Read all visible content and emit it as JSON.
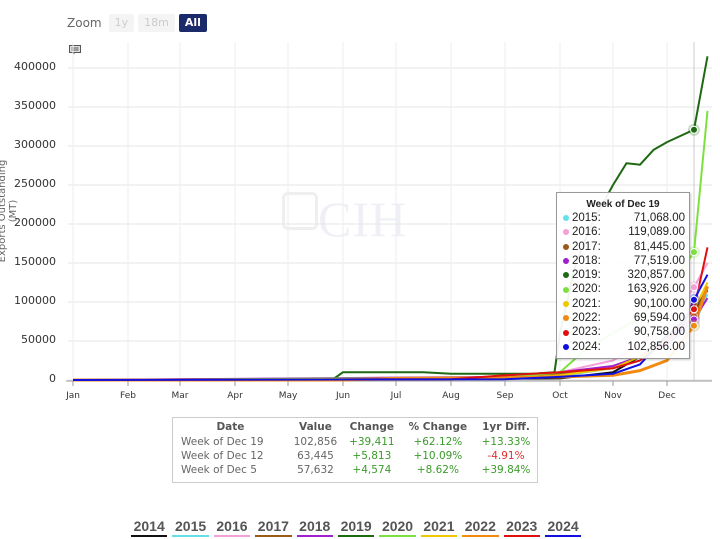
{
  "zoom": {
    "label": "Zoom",
    "buttons": [
      {
        "label": "1y",
        "active": false
      },
      {
        "label": "18m",
        "active": false
      },
      {
        "label": "All",
        "active": true
      }
    ]
  },
  "watermark": "CIH",
  "chart_data": {
    "type": "line",
    "title": "",
    "xlabel": "",
    "ylabel": "Exports Outstanding (MT)",
    "ylim": [
      0,
      400000
    ],
    "grid": true,
    "x_tick_labels": [
      "Jan",
      "Feb",
      "Mar",
      "Apr",
      "May",
      "Jun",
      "Jul",
      "Aug",
      "Sep",
      "Oct",
      "Nov",
      "Dec"
    ],
    "y_tick_labels": [
      "0",
      "50000",
      "100000",
      "150000",
      "200000",
      "250000",
      "300000",
      "350000",
      "400000"
    ],
    "legend_position": "bottom",
    "x_units": "month index (0=Jan, 11=Dec)",
    "series": [
      {
        "name": "2014",
        "color": "#111111",
        "points": [
          [
            0,
            0
          ],
          [
            9,
            2000
          ],
          [
            10,
            10000
          ],
          [
            10.5,
            30000
          ],
          [
            11,
            55000
          ],
          [
            11.5,
            90000
          ],
          [
            11.75,
            115000
          ]
        ]
      },
      {
        "name": "2015",
        "color": "#66e0e8",
        "points": [
          [
            0,
            0
          ],
          [
            8,
            2000
          ],
          [
            9,
            5000
          ],
          [
            10,
            15000
          ],
          [
            10.5,
            30000
          ],
          [
            11,
            45000
          ],
          [
            11.5,
            71068
          ],
          [
            11.75,
            110000
          ]
        ]
      },
      {
        "name": "2016",
        "color": "#f5a0d8",
        "points": [
          [
            0,
            0
          ],
          [
            8,
            3000
          ],
          [
            9,
            10000
          ],
          [
            10,
            25000
          ],
          [
            10.5,
            45000
          ],
          [
            11,
            70000
          ],
          [
            11.5,
            119089
          ],
          [
            11.75,
            150000
          ]
        ]
      },
      {
        "name": "2017",
        "color": "#9a5a1a",
        "points": [
          [
            0,
            0
          ],
          [
            8,
            3000
          ],
          [
            9,
            8000
          ],
          [
            10,
            15000
          ],
          [
            10.5,
            30000
          ],
          [
            11,
            50000
          ],
          [
            11.5,
            81445
          ],
          [
            11.75,
            120000
          ]
        ]
      },
      {
        "name": "2018",
        "color": "#a020d0",
        "points": [
          [
            0,
            0
          ],
          [
            8,
            4000
          ],
          [
            9,
            10000
          ],
          [
            10,
            18000
          ],
          [
            10.5,
            30000
          ],
          [
            11,
            45000
          ],
          [
            11.5,
            77519
          ],
          [
            11.75,
            105000
          ]
        ]
      },
      {
        "name": "2019",
        "color": "#1e6a12",
        "points": [
          [
            0,
            0
          ],
          [
            4.8,
            0
          ],
          [
            5,
            10000
          ],
          [
            6.5,
            10000
          ],
          [
            7,
            8000
          ],
          [
            8.5,
            8000
          ],
          [
            8.9,
            10000
          ],
          [
            9,
            60000
          ],
          [
            9.3,
            150000
          ],
          [
            9.6,
            200000
          ],
          [
            10,
            250000
          ],
          [
            10.25,
            278000
          ],
          [
            10.5,
            276000
          ],
          [
            10.75,
            295000
          ],
          [
            11,
            305000
          ],
          [
            11.5,
            320857
          ],
          [
            11.75,
            415000
          ]
        ]
      },
      {
        "name": "2020",
        "color": "#7ee040",
        "points": [
          [
            0,
            0
          ],
          [
            8,
            3000
          ],
          [
            9,
            10000
          ],
          [
            9.5,
            40000
          ],
          [
            10,
            60000
          ],
          [
            10.5,
            80000
          ],
          [
            11,
            115000
          ],
          [
            11.5,
            163926
          ],
          [
            11.75,
            345000
          ]
        ]
      },
      {
        "name": "2021",
        "color": "#f0c800",
        "points": [
          [
            0,
            0
          ],
          [
            8,
            2000
          ],
          [
            9,
            6000
          ],
          [
            10,
            15000
          ],
          [
            10.5,
            30000
          ],
          [
            11,
            50000
          ],
          [
            11.5,
            90100
          ],
          [
            11.75,
            125000
          ]
        ]
      },
      {
        "name": "2022",
        "color": "#f08a10",
        "points": [
          [
            0,
            0
          ],
          [
            5,
            0
          ],
          [
            6,
            2000
          ],
          [
            8,
            3000
          ],
          [
            9,
            4000
          ],
          [
            10,
            6000
          ],
          [
            10.5,
            12000
          ],
          [
            11,
            25000
          ],
          [
            11.5,
            69594
          ],
          [
            11.75,
            120000
          ]
        ]
      },
      {
        "name": "2023",
        "color": "#e01010",
        "points": [
          [
            0,
            0
          ],
          [
            7,
            1000
          ],
          [
            8,
            6000
          ],
          [
            9,
            10000
          ],
          [
            10,
            15000
          ],
          [
            10.5,
            25000
          ],
          [
            11,
            50000
          ],
          [
            11.5,
            90758
          ],
          [
            11.75,
            170000
          ]
        ]
      },
      {
        "name": "2024",
        "color": "#1010e0",
        "points": [
          [
            0,
            0
          ],
          [
            8,
            1000
          ],
          [
            9,
            4000
          ],
          [
            10,
            8000
          ],
          [
            10.5,
            20000
          ],
          [
            11,
            57632
          ],
          [
            11.25,
            63445
          ],
          [
            11.5,
            102856
          ],
          [
            11.75,
            135000
          ]
        ]
      }
    ],
    "hover_week_x": 11.5
  },
  "tooltip": {
    "title": "Week of Dec 19",
    "rows": [
      {
        "year": "2015:",
        "value": "71,068.00",
        "color": "#66e0e8"
      },
      {
        "year": "2016:",
        "value": "119,089.00",
        "color": "#f5a0d8"
      },
      {
        "year": "2017:",
        "value": "81,445.00",
        "color": "#9a5a1a"
      },
      {
        "year": "2018:",
        "value": "77,519.00",
        "color": "#a020d0"
      },
      {
        "year": "2019:",
        "value": "320,857.00",
        "color": "#1e6a12"
      },
      {
        "year": "2020:",
        "value": "163,926.00",
        "color": "#7ee040"
      },
      {
        "year": "2021:",
        "value": "90,100.00",
        "color": "#f0c800"
      },
      {
        "year": "2022:",
        "value": "69,594.00",
        "color": "#f08a10"
      },
      {
        "year": "2023:",
        "value": "90,758.00",
        "color": "#e01010"
      },
      {
        "year": "2024:",
        "value": "102,856.00",
        "color": "#1010e0"
      }
    ]
  },
  "summary_table": {
    "headers": [
      "Date",
      "Value",
      "Change",
      "% Change",
      "1yr Diff."
    ],
    "rows": [
      {
        "date": "Week of Dec 19",
        "value": "102,856",
        "change": "+39,411",
        "pct": "+62.12%",
        "yr": "+13.33%",
        "yr_neg": false
      },
      {
        "date": "Week of Dec 12",
        "value": "63,445",
        "change": "+5,813",
        "pct": "+10.09%",
        "yr": "-4.91%",
        "yr_neg": true
      },
      {
        "date": "Week of Dec 5",
        "value": "57,632",
        "change": "+4,574",
        "pct": "+8.62%",
        "yr": "+39.84%",
        "yr_neg": false
      }
    ]
  },
  "legend": [
    {
      "label": "2014",
      "color": "#111111"
    },
    {
      "label": "2015",
      "color": "#66e0e8"
    },
    {
      "label": "2016",
      "color": "#f5a0d8"
    },
    {
      "label": "2017",
      "color": "#9a5a1a"
    },
    {
      "label": "2018",
      "color": "#a020d0"
    },
    {
      "label": "2019",
      "color": "#1e6a12"
    },
    {
      "label": "2020",
      "color": "#7ee040"
    },
    {
      "label": "2021",
      "color": "#f0c800"
    },
    {
      "label": "2022",
      "color": "#f08a10"
    },
    {
      "label": "2023",
      "color": "#e01010"
    },
    {
      "label": "2024",
      "color": "#1010e0"
    }
  ]
}
